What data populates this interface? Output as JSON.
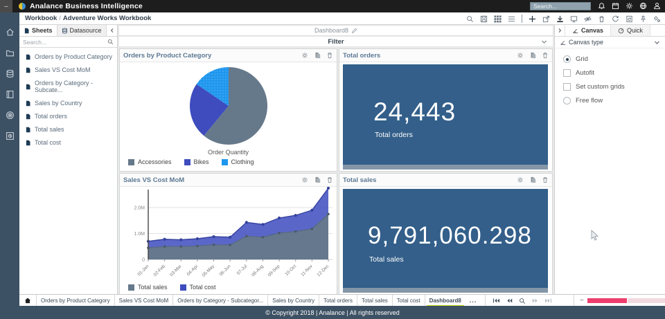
{
  "titlebar": {
    "window_minimize": "–",
    "app_name": "Analance Business Intelligence",
    "search_placeholder": "Search...",
    "icons": [
      "notifications-bell",
      "schedule-calendar",
      "settings-gear",
      "globe",
      "user-profile"
    ]
  },
  "breadcrumb": {
    "root": "Workbook",
    "separator": "/",
    "current": "Adventure Works Workbook"
  },
  "toolbar": {
    "icons": [
      "search",
      "save",
      "grid-view",
      "list-view",
      "add",
      "share",
      "download",
      "present",
      "hide-data",
      "delete",
      "refresh",
      "export-document",
      "pin",
      "advanced-settings"
    ]
  },
  "rail": {
    "icons": [
      "home",
      "folder",
      "datasource",
      "workbook",
      "target",
      "report"
    ]
  },
  "sidebar": {
    "tabs": [
      {
        "label": "Sheets"
      },
      {
        "label": "Datasource"
      }
    ],
    "search_placeholder": "Search...",
    "items": [
      {
        "label": "Orders by Product Category"
      },
      {
        "label": "Sales VS Cost MoM"
      },
      {
        "label": "Orders by Category - Subcate..."
      },
      {
        "label": "Sales by Country"
      },
      {
        "label": "Total orders"
      },
      {
        "label": "Total sales"
      },
      {
        "label": "Total cost"
      }
    ]
  },
  "canvas": {
    "dashboard_name": "Dashboard8",
    "filter_label": "Filter"
  },
  "panels": {
    "pie": {
      "title": "Orders by Product Category",
      "center_label": "Order Quantity"
    },
    "total_orders": {
      "title": "Total orders",
      "value": "24,443",
      "label": "Total orders"
    },
    "area": {
      "title": "Sales VS Cost MoM"
    },
    "total_sales": {
      "title": "Total sales",
      "value": "9,791,060.298",
      "label": "Total sales"
    },
    "action_icons": [
      "settings-gear",
      "copy-sheet",
      "delete-trash"
    ]
  },
  "right_panel": {
    "tabs": [
      {
        "label": "Canvas"
      },
      {
        "label": "Quick"
      }
    ],
    "section_title": "Canvas type",
    "options": [
      {
        "label": "Grid",
        "type": "radio",
        "checked": true
      },
      {
        "label": "Autofit",
        "type": "checkbox",
        "checked": false
      },
      {
        "label": "Set custom grids",
        "type": "checkbox",
        "checked": false
      },
      {
        "label": "Free flow",
        "type": "radio",
        "checked": false
      }
    ]
  },
  "bottom_bar": {
    "tabs": [
      "Orders by Product Category",
      "Sales VS Cost MoM",
      "Orders by Category - Subcategor...",
      "Sales by Country",
      "Total orders",
      "Total sales",
      "Total cost",
      "Dashboard8"
    ],
    "active_tab": "Dashboard8",
    "more": "...",
    "nav_icons": [
      "first-page",
      "previous-page",
      "search",
      "next-page",
      "last-page"
    ],
    "zoom_minus": "−",
    "zoom_plus": "+",
    "zoom_fill_percent": 48
  },
  "footer": {
    "copyright": "© Copyright 2018 | Analance | All rights reserved"
  },
  "colors": {
    "accent_dark_blue": "#335f8a",
    "rail": "#3d5164",
    "slate": "#66798b",
    "indigo": "#3e4cbe",
    "bright_blue": "#1f97ee",
    "active_tab_underline": "#c3d400",
    "slider_pink": "#ed3e6e"
  },
  "chart_data": [
    {
      "type": "pie",
      "title": "Orders by Product Category",
      "series_label": "Order Quantity",
      "legend_position": "bottom",
      "slices": [
        {
          "label": "Accessories",
          "percent": 61.0,
          "color": "#66798b"
        },
        {
          "label": "Bikes",
          "percent": 23.5,
          "color": "#3e4cbe"
        },
        {
          "label": "Clothing",
          "percent": 15.5,
          "color": "#1f97ee",
          "pattern": "dots"
        }
      ]
    },
    {
      "type": "area",
      "title": "Sales VS Cost MoM",
      "categories": [
        "01-Jan",
        "02-Feb",
        "03-Mar",
        "04-Apr",
        "05-May",
        "06-Jun",
        "07-Jul",
        "08-Aug",
        "09-Sep",
        "10-Oct",
        "11-Nov",
        "12-Dec"
      ],
      "series": [
        {
          "name": "Total sales",
          "color": "#66798b",
          "values_millions": [
            0.45,
            0.5,
            0.5,
            0.52,
            0.57,
            0.56,
            0.9,
            0.86,
            1.02,
            1.08,
            1.18,
            1.75
          ]
        },
        {
          "name": "Total cost",
          "color": "#3e4cbe",
          "values_millions": [
            0.7,
            0.78,
            0.76,
            0.8,
            0.88,
            0.86,
            1.43,
            1.35,
            1.6,
            1.7,
            1.9,
            2.75
          ]
        }
      ],
      "yticks": [
        {
          "label": "0",
          "value": 0
        },
        {
          "label": "1.0M",
          "value": 1
        },
        {
          "label": "2.0M",
          "value": 2
        }
      ],
      "ylim": [
        0,
        2.9
      ],
      "grid": true,
      "legend_position": "bottom"
    }
  ]
}
